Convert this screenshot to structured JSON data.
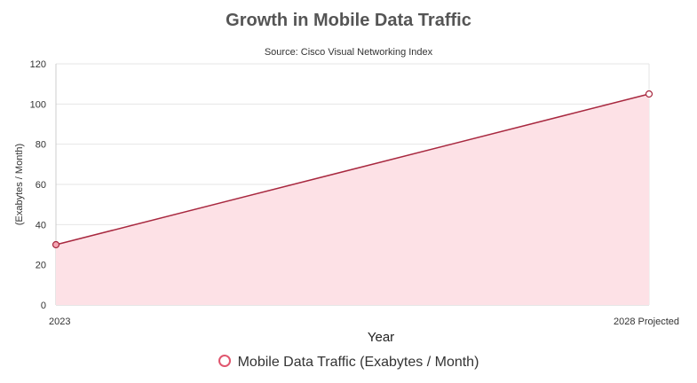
{
  "chart_data": {
    "type": "area",
    "title": "Growth in Mobile Data Traffic",
    "subtitle": "Source: Cisco Visual Networking Index",
    "xlabel": "Year",
    "ylabel": "(Exabytes / Month)",
    "categories": [
      "2023",
      "2028 Projected"
    ],
    "series": [
      {
        "name": "Mobile Data Traffic (Exabytes / Month)",
        "values": [
          30,
          105
        ]
      }
    ],
    "ylim": [
      0,
      120
    ],
    "yticks": [
      0,
      20,
      40,
      60,
      80,
      100,
      120
    ],
    "grid": true,
    "legend_position": "bottom",
    "colors": {
      "line": "#a8283f",
      "fill": "#fde1e6",
      "point": "#e0566e",
      "grid": "#e6e6e6",
      "axis": "#cccccc"
    }
  }
}
